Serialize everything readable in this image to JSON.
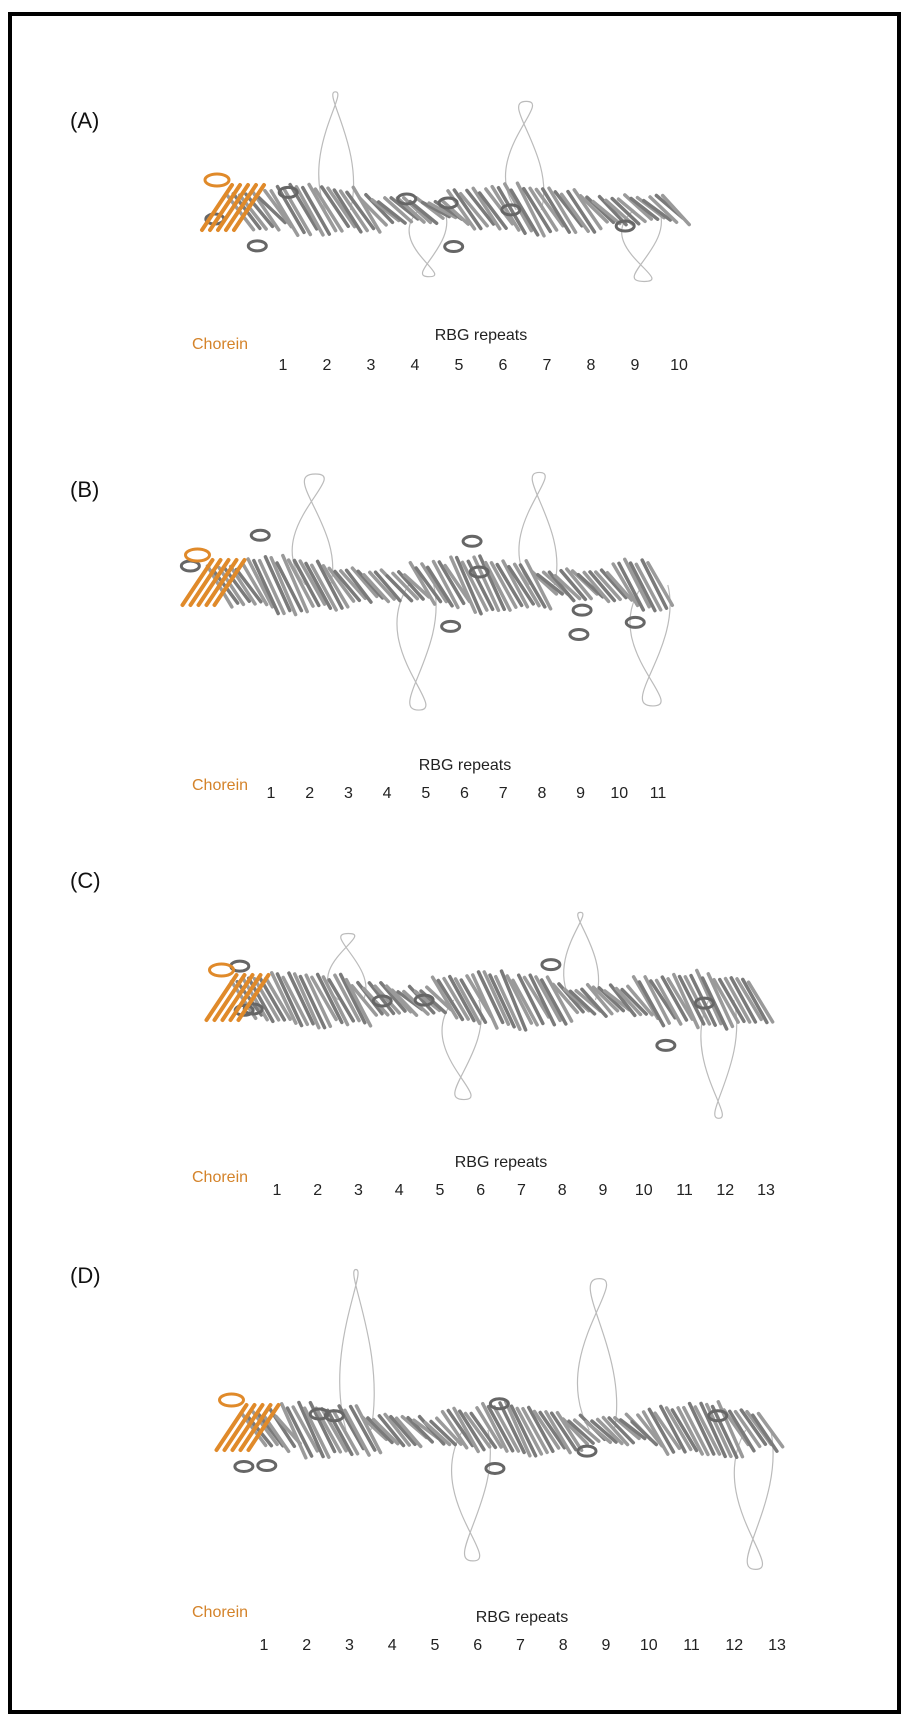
{
  "panels": [
    {
      "label": "(A)",
      "chorein": "Chorein",
      "repeats_title": "RBG repeats",
      "repeats": [
        "1",
        "2",
        "3",
        "4",
        "5",
        "6",
        "7",
        "8",
        "9",
        "10"
      ]
    },
    {
      "label": "(B)",
      "chorein": "Chorein",
      "repeats_title": "RBG repeats",
      "repeats": [
        "1",
        "2",
        "3",
        "4",
        "5",
        "6",
        "7",
        "8",
        "9",
        "10",
        "11"
      ]
    },
    {
      "label": "(C)",
      "chorein": "Chorein",
      "repeats_title": "RBG repeats",
      "repeats": [
        "1",
        "2",
        "3",
        "4",
        "5",
        "6",
        "7",
        "8",
        "9",
        "10",
        "11",
        "12",
        "13"
      ]
    },
    {
      "label": "(D)",
      "chorein": "Chorein",
      "repeats_title": "RBG repeats",
      "repeats": [
        "1",
        "2",
        "3",
        "4",
        "5",
        "6",
        "7",
        "8",
        "9",
        "10",
        "11",
        "12",
        "13"
      ]
    }
  ]
}
